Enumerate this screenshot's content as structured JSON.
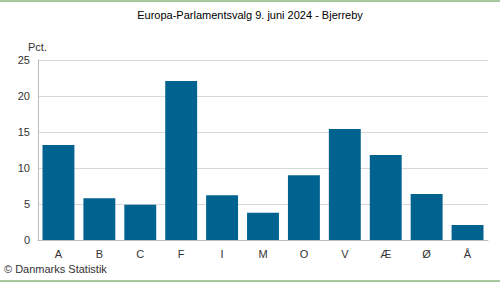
{
  "chart_data": {
    "type": "bar",
    "title": "Europa-Parlamentsvalg 9. juni 2024 - Bjerreby",
    "y_label": "Pct.",
    "categories": [
      "A",
      "B",
      "C",
      "F",
      "I",
      "M",
      "O",
      "V",
      "Æ",
      "Ø",
      "Å"
    ],
    "values": [
      13.2,
      5.8,
      4.9,
      22.1,
      6.2,
      3.8,
      9.0,
      15.4,
      11.8,
      6.4,
      2.1
    ],
    "color": "#00628f",
    "ylim": [
      0,
      25
    ],
    "yticks": [
      0,
      5,
      10,
      15,
      20,
      25
    ],
    "grid": true,
    "annotations": [
      "© Danmarks Statistik"
    ]
  }
}
